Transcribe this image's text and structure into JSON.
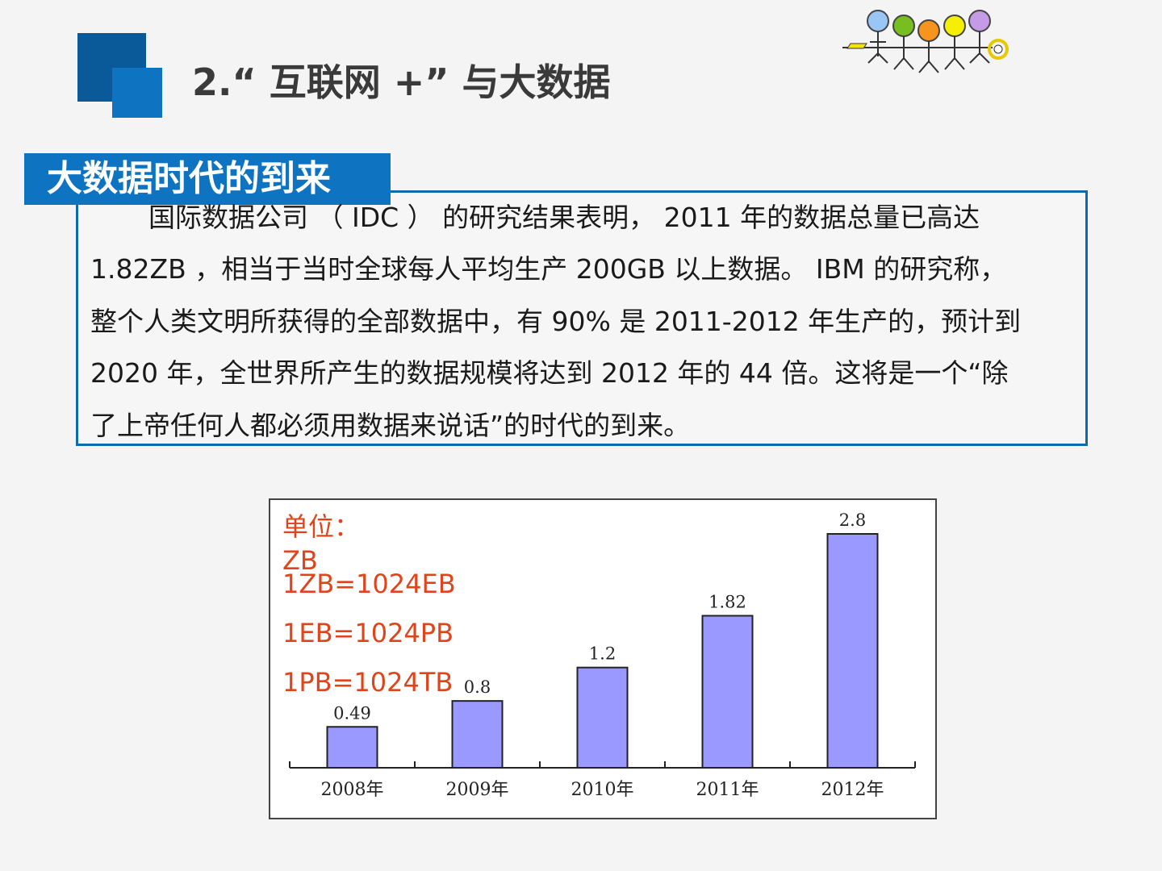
{
  "header": {
    "title": "2.“ 互联网 +” 与大数据"
  },
  "section": {
    "label": "大数据时代的到来",
    "lines": [
      "国际数据公司 （ IDC ） 的研究结果表明， 2011 年的数据总量已高达",
      "1.82ZB ，相当于当时全球每人平均生产 200GB 以上数据。 IBM 的研究称，",
      "整个人类文明所获得的全部数据中，有 90% 是 2011-2012 年生产的，预计到",
      "2020 年，全世界所产生的数据规模将达到 2012 年的 44 倍。这将是一个“除",
      "了上帝任何人都必须用数据来说话”的时代的到来。"
    ]
  },
  "units": {
    "line1": "单位：",
    "line2": "ZB",
    "line3": "1ZB=1024EB",
    "line4": "1EB=1024PB",
    "line5": "1PB=1024TB"
  },
  "chart_data": {
    "type": "bar",
    "categories": [
      "2008年",
      "2009年",
      "2010年",
      "2011年",
      "2012年"
    ],
    "values": [
      0.49,
      0.8,
      1.2,
      1.82,
      2.8
    ],
    "value_labels": [
      "0.49",
      "0.8",
      "1.2",
      "1.82",
      "2.8"
    ],
    "title": "",
    "xlabel": "",
    "ylabel": "",
    "ylim": [
      0,
      2.8
    ],
    "bar_color": "#9999ff",
    "grid": false
  },
  "colors": {
    "accent": "#0e74c2",
    "accent_dark": "#0a5a9a",
    "unit_text": "#e0441b"
  },
  "logo": {
    "icon": "people-chain-icon"
  }
}
